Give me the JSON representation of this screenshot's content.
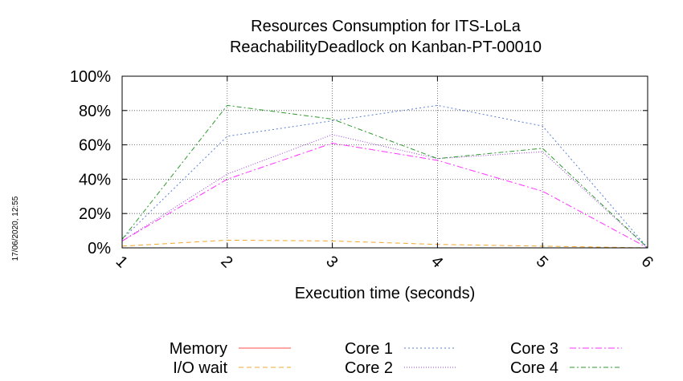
{
  "side_timestamp": "17/06/2020, 12:55",
  "chart_data": {
    "type": "line",
    "title_line1": "Resources Consumption for ITS-LoLa",
    "title_line2": "ReachabilityDeadlock on Kanban-PT-00010",
    "xlabel": "Execution time (seconds)",
    "ylabel": "",
    "x": [
      1,
      2,
      3,
      4,
      5,
      6
    ],
    "x_ticks": [
      "1",
      "2",
      "3",
      "4",
      "5",
      "6"
    ],
    "ylim": [
      0,
      100
    ],
    "y_ticks": [
      "0%",
      "20%",
      "40%",
      "60%",
      "80%",
      "100%"
    ],
    "y_tick_values": [
      0,
      20,
      40,
      60,
      80,
      100
    ],
    "grid": true,
    "legend_position": "bottom",
    "series": [
      {
        "name": "Memory",
        "color": "#ff4d4d",
        "dash": "",
        "values": [
          0,
          0,
          0,
          0,
          0,
          0
        ]
      },
      {
        "name": "I/O wait",
        "color": "#f0a830",
        "dash": "6,4",
        "values": [
          1,
          4.5,
          4,
          2,
          1,
          0
        ]
      },
      {
        "name": "Core 1",
        "color": "#5a7fd6",
        "dash": "2,3",
        "values": [
          5,
          65,
          74,
          83,
          71,
          0
        ]
      },
      {
        "name": "Core 2",
        "color": "#9a3fd9",
        "dash": "1,2",
        "values": [
          4,
          43,
          66,
          52,
          56,
          0
        ]
      },
      {
        "name": "Core 3",
        "color": "#ff33ff",
        "dash": "8,3,2,3",
        "values": [
          4,
          40,
          61,
          51,
          33,
          0
        ]
      },
      {
        "name": "Core 4",
        "color": "#2e9a2e",
        "dash": "6,3,2,3",
        "values": [
          5,
          83,
          75,
          52,
          58,
          0
        ]
      }
    ]
  }
}
